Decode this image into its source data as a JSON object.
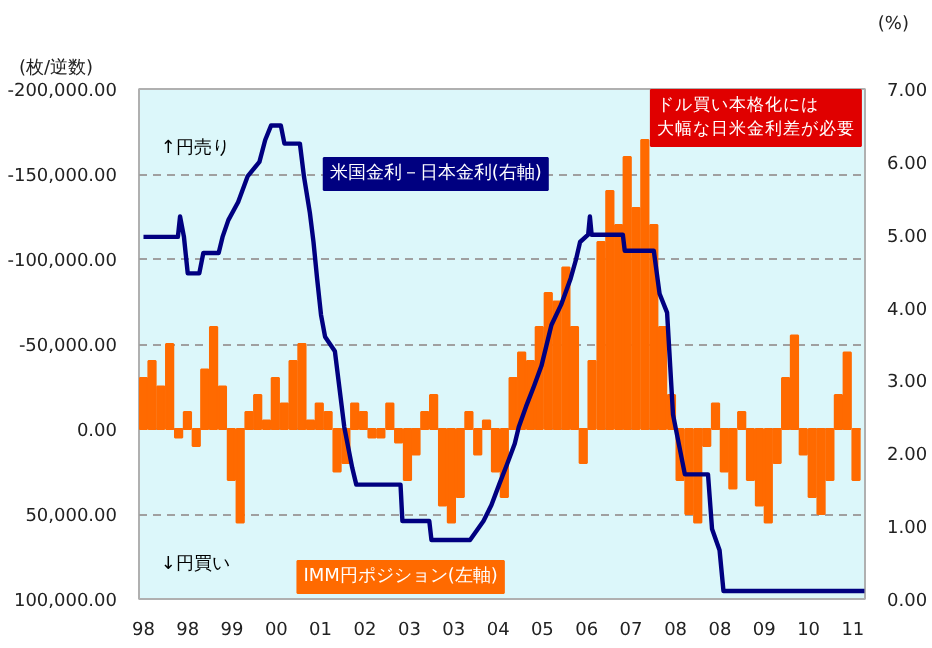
{
  "chart_data": {
    "type": "bar",
    "ylabel": "(枚/逆数)",
    "y2label": "(%)",
    "grid": "y",
    "xlim": [
      "1997-12-01",
      "2011-09-01"
    ],
    "xticks": [
      {
        "value": "1998-01-01",
        "label": "98"
      },
      {
        "value": "1998-11-03",
        "label": "98"
      },
      {
        "value": "1999-09-05",
        "label": "99"
      },
      {
        "value": "2000-07-08",
        "label": "00"
      },
      {
        "value": "2001-05-10",
        "label": "01"
      },
      {
        "value": "2002-03-13",
        "label": "02"
      },
      {
        "value": "2003-01-15",
        "label": "03"
      },
      {
        "value": "2003-11-17",
        "label": "03"
      },
      {
        "value": "2004-09-20",
        "label": "04"
      },
      {
        "value": "2005-07-22",
        "label": "05"
      },
      {
        "value": "2006-05-25",
        "label": "06"
      },
      {
        "value": "2007-03-27",
        "label": "07"
      },
      {
        "value": "2008-01-30",
        "label": "08"
      },
      {
        "value": "2008-12-02",
        "label": "08"
      },
      {
        "value": "2009-10-04",
        "label": "09"
      },
      {
        "value": "2010-08-07",
        "label": "10"
      },
      {
        "value": "2011-06-09",
        "label": "11"
      }
    ],
    "ylim": [
      100000,
      -200000
    ],
    "yticks": [
      {
        "value": -200000,
        "label": "-200,000.00"
      },
      {
        "value": -150000,
        "label": "-150,000.00"
      },
      {
        "value": -100000,
        "label": "-100,000.00"
      },
      {
        "value": -50000,
        "label": "-50,000.00"
      },
      {
        "value": 0,
        "label": "0.00"
      },
      {
        "value": 50000,
        "label": "50,000.00"
      },
      {
        "value": 100000,
        "label": "100,000.00"
      }
    ],
    "y2lim": [
      0,
      7
    ],
    "y2ticks": [
      {
        "value": 0,
        "label": "0.00"
      },
      {
        "value": 1,
        "label": "1.00"
      },
      {
        "value": 2,
        "label": "2.00"
      },
      {
        "value": 3,
        "label": "3.00"
      },
      {
        "value": 4,
        "label": "4.00"
      },
      {
        "value": 5,
        "label": "5.00"
      },
      {
        "value": 6,
        "label": "6.00"
      },
      {
        "value": 7,
        "label": "7.00"
      }
    ],
    "annotations": [
      "↑円売り",
      "↓円買い",
      "ドル買い本格化には大幅な日米金利差が必要"
    ],
    "series": [
      {
        "name": "IMM円ポジション(左軸)",
        "color": "#ff6a00",
        "x": [
          "1998-01",
          "1998-03",
          "1998-05",
          "1998-07",
          "1998-09",
          "1998-11",
          "1999-01",
          "1999-03",
          "1999-05",
          "1999-07",
          "1999-09",
          "1999-11",
          "2000-01",
          "2000-03",
          "2000-05",
          "2000-07",
          "2000-09",
          "2000-11",
          "2001-01",
          "2001-03",
          "2001-05",
          "2001-07",
          "2001-09",
          "2001-11",
          "2002-01",
          "2002-03",
          "2002-05",
          "2002-07",
          "2002-09",
          "2002-11",
          "2003-01",
          "2003-03",
          "2003-05",
          "2003-07",
          "2003-09",
          "2003-11",
          "2004-01",
          "2004-03",
          "2004-05",
          "2004-07",
          "2004-09",
          "2004-11",
          "2005-01",
          "2005-03",
          "2005-05",
          "2005-07",
          "2005-09",
          "2005-11",
          "2006-01",
          "2006-03",
          "2006-05",
          "2006-07",
          "2006-09",
          "2006-11",
          "2007-01",
          "2007-03",
          "2007-05",
          "2007-07",
          "2007-09",
          "2007-11",
          "2008-01",
          "2008-03",
          "2008-05",
          "2008-07",
          "2008-09",
          "2008-11",
          "2009-01",
          "2009-03",
          "2009-05",
          "2009-07",
          "2009-09",
          "2009-11",
          "2010-01",
          "2010-03",
          "2010-05",
          "2010-07",
          "2010-09",
          "2010-11",
          "2011-01",
          "2011-03",
          "2011-05",
          "2011-07"
        ],
        "values": [
          -30000,
          -40000,
          -25000,
          -50000,
          5000,
          -10000,
          10000,
          -35000,
          -60000,
          -25000,
          30000,
          55000,
          -10000,
          -20000,
          -5000,
          -30000,
          -15000,
          -40000,
          -50000,
          -5000,
          -15000,
          -10000,
          25000,
          20000,
          -15000,
          -10000,
          5000,
          5000,
          -15000,
          8000,
          30000,
          15000,
          -10000,
          -20000,
          45000,
          55000,
          40000,
          -10000,
          15000,
          -5000,
          25000,
          40000,
          -30000,
          -45000,
          -40000,
          -60000,
          -80000,
          -75000,
          -95000,
          -60000,
          20000,
          -40000,
          -110000,
          -140000,
          -120000,
          -160000,
          -130000,
          -170000,
          -120000,
          -60000,
          -20000,
          30000,
          50000,
          55000,
          10000,
          -15000,
          25000,
          35000,
          -10000,
          30000,
          45000,
          55000,
          20000,
          -30000,
          -55000,
          15000,
          40000,
          50000,
          30000,
          -20000,
          -45000,
          30000
        ]
      },
      {
        "name": "米国金利－日本金利(右軸)",
        "type": "line",
        "axis": "y2",
        "color": "#000080",
        "x": [
          "1998-01-01",
          "1998-08-27",
          "1998-09-11",
          "1998-10-08",
          "1998-11-03",
          "1999-01-22",
          "1999-02-19",
          "1999-06-05",
          "1999-07-02",
          "1999-08-11",
          "1999-10-18",
          "1999-12-22",
          "2000-03-13",
          "2000-04-22",
          "2000-06-02",
          "2000-08-08",
          "2000-09-02",
          "2000-12-18",
          "2001-01-15",
          "2001-02-25",
          "2001-03-22",
          "2001-04-16",
          "2001-05-13",
          "2001-06-10",
          "2001-08-17",
          "2001-10-21",
          "2001-12-15",
          "2002-01-12",
          "2002-11-14",
          "2002-11-27",
          "2003-06-01",
          "2003-06-16",
          "2004-03-09",
          "2004-06-10",
          "2004-08-04",
          "2004-09-26",
          "2004-11-20",
          "2005-01-12",
          "2005-02-09",
          "2005-03-31",
          "2005-05-25",
          "2005-07-16",
          "2005-09-23",
          "2005-11-29",
          "2006-02-03",
          "2006-03-12",
          "2006-04-09",
          "2006-06-04",
          "2006-06-16",
          "2006-06-28",
          "2007-01-30",
          "2007-02-12",
          "2007-09-01",
          "2007-10-11",
          "2007-12-02",
          "2008-01-12",
          "2008-04-03",
          "2008-09-10",
          "2008-10-08",
          "2008-11-29",
          "2008-12-26",
          "2011-08-28"
        ],
        "values": [
          4.97,
          4.97,
          5.25,
          4.97,
          4.47,
          4.47,
          4.75,
          4.75,
          4.97,
          5.2,
          5.45,
          5.8,
          6.0,
          6.3,
          6.5,
          6.5,
          6.25,
          6.25,
          5.8,
          5.3,
          4.9,
          4.4,
          3.9,
          3.6,
          3.4,
          2.36,
          1.8,
          1.57,
          1.57,
          1.07,
          1.07,
          0.81,
          0.81,
          1.07,
          1.29,
          1.57,
          1.85,
          2.13,
          2.36,
          2.64,
          2.92,
          3.2,
          3.76,
          4.04,
          4.4,
          4.66,
          4.9,
          5.0,
          5.25,
          5.0,
          5.0,
          4.78,
          4.78,
          4.19,
          3.93,
          2.53,
          1.71,
          1.71,
          0.96,
          0.67,
          0.11,
          0.11
        ]
      }
    ]
  }
}
